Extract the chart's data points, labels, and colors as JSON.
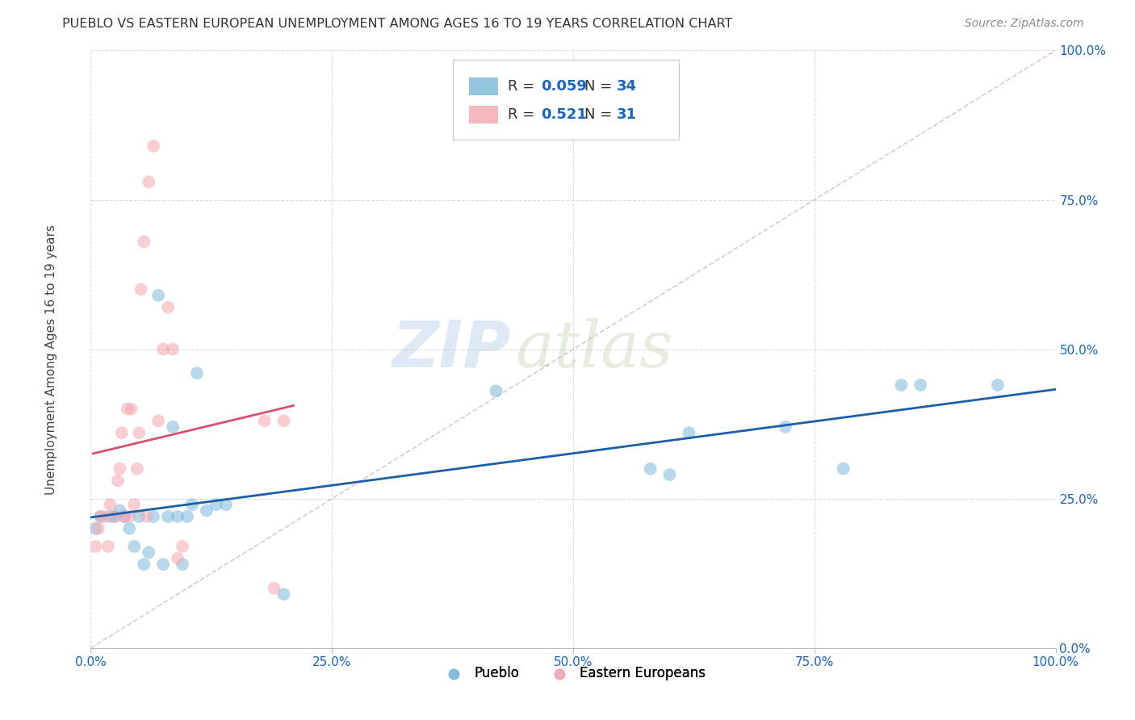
{
  "title": "PUEBLO VS EASTERN EUROPEAN UNEMPLOYMENT AMONG AGES 16 TO 19 YEARS CORRELATION CHART",
  "source": "Source: ZipAtlas.com",
  "ylabel": "Unemployment Among Ages 16 to 19 years",
  "xlim": [
    0.0,
    1.0
  ],
  "ylim": [
    0.0,
    1.0
  ],
  "xticks": [
    0.0,
    0.25,
    0.5,
    0.75,
    1.0
  ],
  "yticks": [
    0.0,
    0.25,
    0.5,
    0.75,
    1.0
  ],
  "xticklabels": [
    "0.0%",
    "25.0%",
    "50.0%",
    "75.0%",
    "100.0%"
  ],
  "yticklabels": [
    "0.0%",
    "25.0%",
    "50.0%",
    "75.0%",
    "100.0%"
  ],
  "pueblo_color": "#7ab8d9",
  "eastern_color": "#f4a6b0",
  "pueblo_line_color": "#1a5fa8",
  "eastern_line_color": "#d94f6e",
  "diag_color": "#d0b0b8",
  "R_pueblo": 0.059,
  "N_pueblo": 34,
  "R_eastern": 0.521,
  "N_eastern": 31,
  "pueblo_x": [
    0.005,
    0.01,
    0.02,
    0.025,
    0.03,
    0.035,
    0.04,
    0.045,
    0.05,
    0.055,
    0.06,
    0.065,
    0.07,
    0.075,
    0.08,
    0.085,
    0.09,
    0.095,
    0.1,
    0.105,
    0.11,
    0.12,
    0.13,
    0.14,
    0.2,
    0.42,
    0.58,
    0.6,
    0.62,
    0.72,
    0.78,
    0.84,
    0.86,
    0.94
  ],
  "pueblo_y": [
    0.2,
    0.22,
    0.22,
    0.22,
    0.23,
    0.22,
    0.2,
    0.17,
    0.22,
    0.14,
    0.16,
    0.22,
    0.59,
    0.14,
    0.22,
    0.37,
    0.22,
    0.14,
    0.22,
    0.24,
    0.46,
    0.23,
    0.24,
    0.24,
    0.09,
    0.43,
    0.3,
    0.29,
    0.36,
    0.37,
    0.3,
    0.44,
    0.44,
    0.44
  ],
  "eastern_x": [
    0.005,
    0.008,
    0.01,
    0.015,
    0.018,
    0.02,
    0.025,
    0.028,
    0.03,
    0.032,
    0.035,
    0.038,
    0.04,
    0.042,
    0.045,
    0.048,
    0.05,
    0.052,
    0.055,
    0.058,
    0.06,
    0.065,
    0.07,
    0.075,
    0.08,
    0.085,
    0.09,
    0.095,
    0.18,
    0.19,
    0.2
  ],
  "eastern_y": [
    0.17,
    0.2,
    0.22,
    0.22,
    0.17,
    0.24,
    0.22,
    0.28,
    0.3,
    0.36,
    0.22,
    0.4,
    0.22,
    0.4,
    0.24,
    0.3,
    0.36,
    0.6,
    0.68,
    0.22,
    0.78,
    0.84,
    0.38,
    0.5,
    0.57,
    0.5,
    0.15,
    0.17,
    0.38,
    0.1,
    0.38
  ],
  "background_color": "#ffffff",
  "grid_color": "#cccccc",
  "watermark_zip": "ZIP",
  "watermark_atlas": "atlas",
  "legend_pueblo_label": "Pueblo",
  "legend_eastern_label": "Eastern Europeans"
}
